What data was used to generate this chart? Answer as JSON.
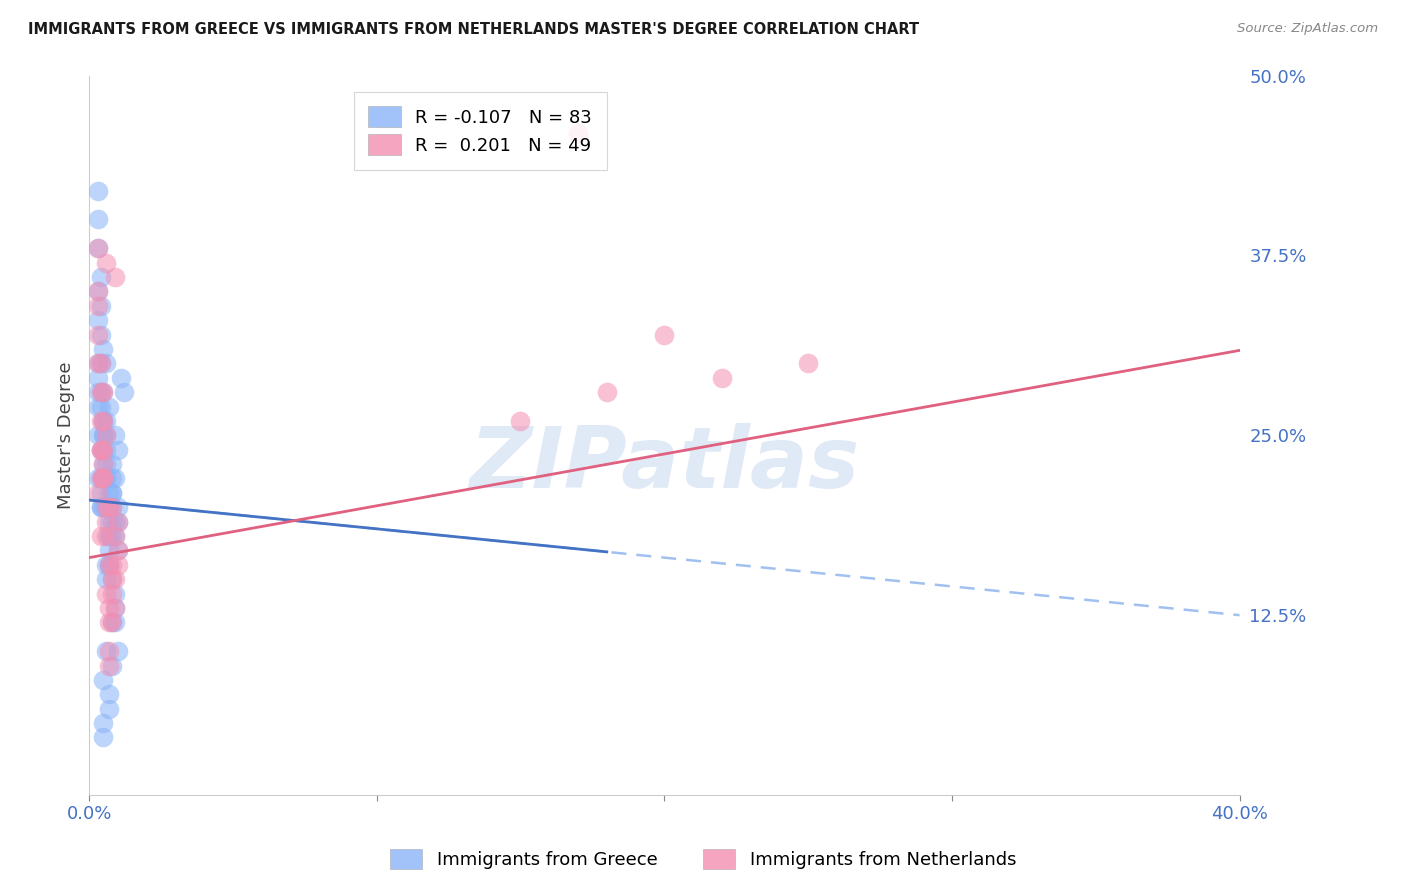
{
  "title": "IMMIGRANTS FROM GREECE VS IMMIGRANTS FROM NETHERLANDS MASTER'S DEGREE CORRELATION CHART",
  "source": "Source: ZipAtlas.com",
  "ylabel": "Master's Degree",
  "xmin": 0.0,
  "xmax": 0.4,
  "ymin": 0.0,
  "ymax": 0.5,
  "right_yticks": [
    0.0,
    0.125,
    0.25,
    0.375,
    0.5
  ],
  "right_yticklabels": [
    "",
    "12.5%",
    "25.0%",
    "37.5%",
    "50.0%"
  ],
  "series": [
    {
      "name": "Immigrants from Greece",
      "color": "#8ab4f8",
      "R": -0.107,
      "N": 83,
      "x": [
        0.005,
        0.008,
        0.003,
        0.012,
        0.006,
        0.004,
        0.009,
        0.007,
        0.011,
        0.005,
        0.003,
        0.006,
        0.008,
        0.004,
        0.007,
        0.005,
        0.009,
        0.006,
        0.003,
        0.008,
        0.004,
        0.007,
        0.005,
        0.006,
        0.01,
        0.003,
        0.008,
        0.005,
        0.007,
        0.004,
        0.006,
        0.009,
        0.003,
        0.005,
        0.007,
        0.004,
        0.008,
        0.006,
        0.01,
        0.005,
        0.003,
        0.007,
        0.004,
        0.006,
        0.009,
        0.005,
        0.008,
        0.003,
        0.007,
        0.004,
        0.006,
        0.01,
        0.005,
        0.003,
        0.008,
        0.004,
        0.007,
        0.006,
        0.009,
        0.005,
        0.003,
        0.008,
        0.004,
        0.007,
        0.005,
        0.006,
        0.01,
        0.003,
        0.009,
        0.005,
        0.004,
        0.007,
        0.006,
        0.008,
        0.003,
        0.005,
        0.009,
        0.004,
        0.007,
        0.006,
        0.01,
        0.005,
        0.008
      ],
      "y": [
        0.2,
        0.22,
        0.42,
        0.28,
        0.3,
        0.32,
        0.25,
        0.27,
        0.29,
        0.24,
        0.38,
        0.26,
        0.23,
        0.36,
        0.21,
        0.31,
        0.22,
        0.25,
        0.4,
        0.2,
        0.34,
        0.19,
        0.28,
        0.22,
        0.24,
        0.35,
        0.21,
        0.26,
        0.2,
        0.3,
        0.23,
        0.19,
        0.33,
        0.22,
        0.18,
        0.28,
        0.21,
        0.24,
        0.2,
        0.26,
        0.3,
        0.17,
        0.27,
        0.22,
        0.18,
        0.25,
        0.19,
        0.29,
        0.16,
        0.24,
        0.2,
        0.17,
        0.23,
        0.28,
        0.15,
        0.22,
        0.18,
        0.2,
        0.14,
        0.25,
        0.27,
        0.12,
        0.2,
        0.16,
        0.22,
        0.1,
        0.19,
        0.25,
        0.13,
        0.08,
        0.21,
        0.06,
        0.15,
        0.18,
        0.22,
        0.05,
        0.12,
        0.2,
        0.07,
        0.16,
        0.1,
        0.04,
        0.09
      ]
    },
    {
      "name": "Immigrants from Netherlands",
      "color": "#f48fb1",
      "R": 0.201,
      "N": 49,
      "x": [
        0.004,
        0.007,
        0.003,
        0.009,
        0.005,
        0.006,
        0.008,
        0.004,
        0.01,
        0.005,
        0.003,
        0.007,
        0.006,
        0.009,
        0.004,
        0.008,
        0.005,
        0.006,
        0.003,
        0.01,
        0.007,
        0.004,
        0.008,
        0.005,
        0.006,
        0.003,
        0.009,
        0.004,
        0.007,
        0.005,
        0.006,
        0.008,
        0.003,
        0.01,
        0.004,
        0.007,
        0.005,
        0.006,
        0.009,
        0.003,
        0.008,
        0.004,
        0.007,
        0.25,
        0.18,
        0.2,
        0.15,
        0.17,
        0.22
      ],
      "y": [
        0.18,
        0.2,
        0.38,
        0.36,
        0.22,
        0.37,
        0.15,
        0.24,
        0.19,
        0.28,
        0.21,
        0.16,
        0.25,
        0.18,
        0.3,
        0.2,
        0.22,
        0.14,
        0.35,
        0.17,
        0.12,
        0.26,
        0.16,
        0.23,
        0.19,
        0.32,
        0.15,
        0.28,
        0.13,
        0.24,
        0.2,
        0.12,
        0.3,
        0.16,
        0.22,
        0.1,
        0.26,
        0.18,
        0.13,
        0.34,
        0.14,
        0.24,
        0.09,
        0.3,
        0.28,
        0.32,
        0.26,
        0.46,
        0.29
      ]
    }
  ],
  "blue_line": {
    "slope": -0.107,
    "x_solid_start": 0.0,
    "x_solid_end": 0.18,
    "x_dash_start": 0.0,
    "x_dash_end": 0.4,
    "intercept": 0.205,
    "color_solid": "#4472c4",
    "color_dash": "#a0c0f0"
  },
  "pink_line": {
    "slope": 0.201,
    "x_start": 0.0,
    "x_end": 0.4,
    "intercept": 0.165,
    "color": "#e06080"
  },
  "watermark": "ZIPatlas",
  "watermark_color": "#c8d8f0",
  "background_color": "#ffffff",
  "grid_color": "#cccccc",
  "title_fontsize": 10.5,
  "axis_label_color": "#4472c4",
  "legend_R_blue": "-0.107",
  "legend_N_blue": "83",
  "legend_R_pink": "0.201",
  "legend_N_pink": "49"
}
